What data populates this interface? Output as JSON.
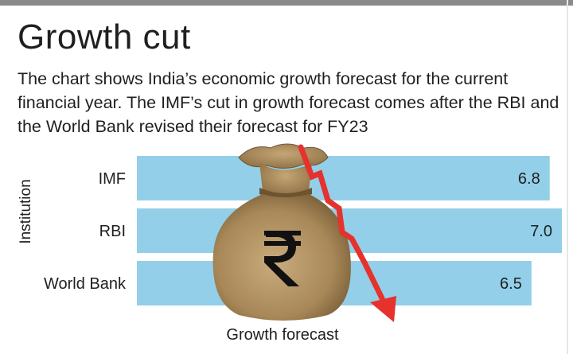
{
  "header": {
    "title": "Growth cut",
    "subtitle": "The chart shows India’s economic growth forecast for the current financial year. The IMF’s cut in growth forecast comes after the RBI and the World Bank revised their forecast for FY23"
  },
  "colors": {
    "bar": "#93CFE8",
    "arrow": "#E5322D",
    "bag": "#B89A6E"
  },
  "icons": {
    "money_bag": "rupee-money-bag-icon",
    "arrow": "falling-arrow-icon"
  },
  "chart_data": {
    "type": "bar",
    "orientation": "horizontal",
    "title": "Growth cut",
    "xlabel": "Growth forecast",
    "ylabel": "Institution",
    "categories": [
      "IMF",
      "RBI",
      "World Bank"
    ],
    "values": [
      6.8,
      7.0,
      6.5
    ],
    "value_labels": [
      "6.8",
      "7.0",
      "6.5"
    ],
    "xlim": [
      0,
      7.0
    ],
    "grid": false,
    "legend": "none"
  }
}
